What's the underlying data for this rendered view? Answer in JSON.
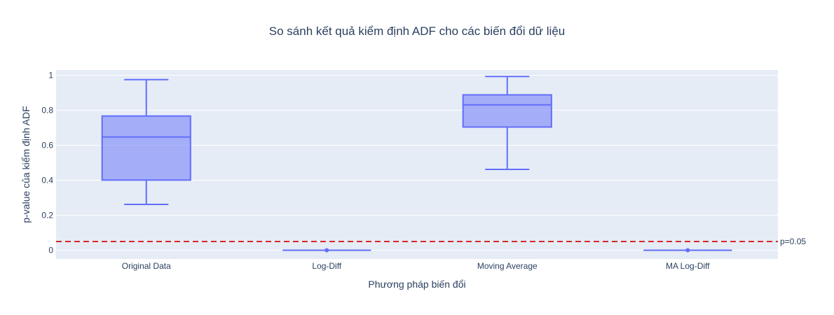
{
  "chart_data": {
    "type": "box",
    "title": "So sánh kết quả kiểm định ADF cho các biến đổi dữ liệu",
    "xlabel": "Phương pháp biến đổi",
    "ylabel": "p-value của kiểm định ADF",
    "ylim": [
      -0.05,
      1.03
    ],
    "yticks": [
      0,
      0.2,
      0.4,
      0.6,
      0.8,
      1
    ],
    "ytick_labels": [
      "0",
      "0.2",
      "0.4",
      "0.6",
      "0.8",
      "1"
    ],
    "grid": true,
    "categories": [
      "Original Data",
      "Log-Diff",
      "Moving Average",
      "MA Log-Diff"
    ],
    "boxes": [
      {
        "category": "Original Data",
        "min": 0.262,
        "q1": 0.401,
        "median": 0.647,
        "q3": 0.767,
        "max": 0.975
      },
      {
        "category": "Log-Diff",
        "min": 0.0,
        "q1": 0.0,
        "median": 0.0,
        "q3": 0.0,
        "max": 0.0
      },
      {
        "category": "Moving Average",
        "min": 0.462,
        "q1": 0.704,
        "median": 0.831,
        "q3": 0.888,
        "max": 0.993
      },
      {
        "category": "MA Log-Diff",
        "min": 0.0,
        "q1": 0.0,
        "median": 0.0,
        "q3": 0.0,
        "max": 0.0
      }
    ],
    "reference_line": {
      "y": 0.05,
      "label": "p=0.05",
      "color": "#d62728"
    },
    "colors": {
      "plot_bg": "#e5ecf6",
      "box_fill": "rgba(99,110,250,0.5)",
      "box_line": "#636efa",
      "grid": "#ffffff",
      "text": "#2a3f5f"
    }
  }
}
